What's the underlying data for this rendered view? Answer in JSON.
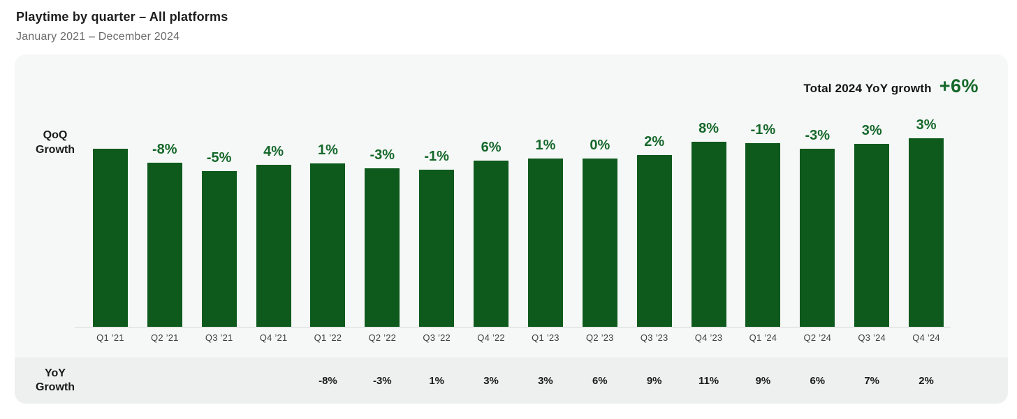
{
  "page": {
    "title": "Playtime by quarter – All platforms",
    "subtitle": "January 2021 – December 2024"
  },
  "summary": {
    "label": "Total 2024 YoY growth",
    "value": "+6%"
  },
  "side_labels": {
    "qoq_line1": "QoQ",
    "qoq_line2": "Growth",
    "yoy_line1": "YoY",
    "yoy_line2": "Growth"
  },
  "chart_data": {
    "type": "bar",
    "title": "Playtime by quarter – All platforms",
    "subtitle": "January 2021 – December 2024",
    "categories": [
      "Q1 ’21",
      "Q2 ’21",
      "Q3 ’21",
      "Q4 ’21",
      "Q1 ’22",
      "Q2 ’22",
      "Q3 ’22",
      "Q4 ’22",
      "Q1 ’23",
      "Q2 ’23",
      "Q3 ’23",
      "Q4 ’23",
      "Q1 ’24",
      "Q2 ’24",
      "Q3 ’24",
      "Q4 ’24"
    ],
    "series": [
      {
        "name": "QoQ Growth",
        "labels": [
          "",
          "-8%",
          "-5%",
          "4%",
          "1%",
          "-3%",
          "-1%",
          "6%",
          "1%",
          "0%",
          "2%",
          "8%",
          "-1%",
          "-3%",
          "3%",
          "3%"
        ],
        "values_pct": [
          null,
          -8,
          -5,
          4,
          1,
          -3,
          -1,
          6,
          1,
          0,
          2,
          8,
          -1,
          -3,
          3,
          3
        ]
      },
      {
        "name": "YoY Growth",
        "labels": [
          "",
          "",
          "",
          "",
          "-8%",
          "-3%",
          "1%",
          "3%",
          "3%",
          "6%",
          "9%",
          "11%",
          "9%",
          "6%",
          "7%",
          "2%"
        ],
        "values_pct": [
          null,
          null,
          null,
          null,
          -8,
          -3,
          1,
          3,
          3,
          6,
          9,
          11,
          9,
          6,
          7,
          2
        ]
      }
    ],
    "bar_index_values_q1_21_base_100": [
      100,
      92,
      87.4,
      90.9,
      91.8,
      89.1,
      88.2,
      93.5,
      94.4,
      94.4,
      96.3,
      104,
      103,
      99.9,
      102.9,
      106
    ],
    "annotation": {
      "label": "Total 2024 YoY growth",
      "value": "+6%"
    },
    "legend_position": "none",
    "grid": false,
    "colors": {
      "bar": "#0d5a1c",
      "growth_label_text": "#15682a",
      "summary_value_text": "#15682a",
      "card_bg": "#f6f7f7",
      "yoy_band_bg": "#edf0ee",
      "axis_line": "#d9dbdb"
    }
  }
}
